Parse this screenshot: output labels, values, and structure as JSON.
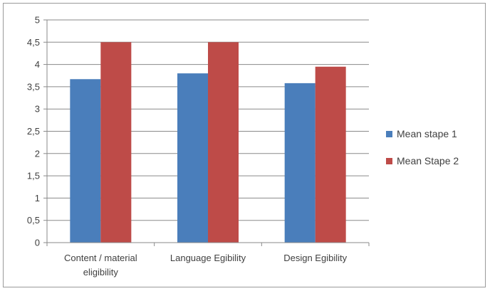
{
  "chart_data": {
    "type": "bar",
    "categories": [
      [
        "Content / material",
        "eligibility"
      ],
      [
        "Language Egibility"
      ],
      [
        "Design Egibility"
      ]
    ],
    "series": [
      {
        "name": "Mean stape 1",
        "values": [
          3.67,
          3.8,
          3.58
        ],
        "color": "#4a7ebb"
      },
      {
        "name": "Mean Stape 2",
        "values": [
          4.5,
          4.5,
          3.95
        ],
        "color": "#be4b48"
      }
    ],
    "ylim": [
      0,
      5
    ],
    "yticks": [
      0,
      0.5,
      1,
      1.5,
      2,
      2.5,
      3,
      3.5,
      4,
      4.5,
      5
    ],
    "ytick_labels": [
      "0",
      "0,5",
      "1",
      "1,5",
      "2",
      "2,5",
      "3",
      "3,5",
      "4",
      "4,5",
      "5"
    ],
    "grid": true,
    "legend_position": "right"
  }
}
